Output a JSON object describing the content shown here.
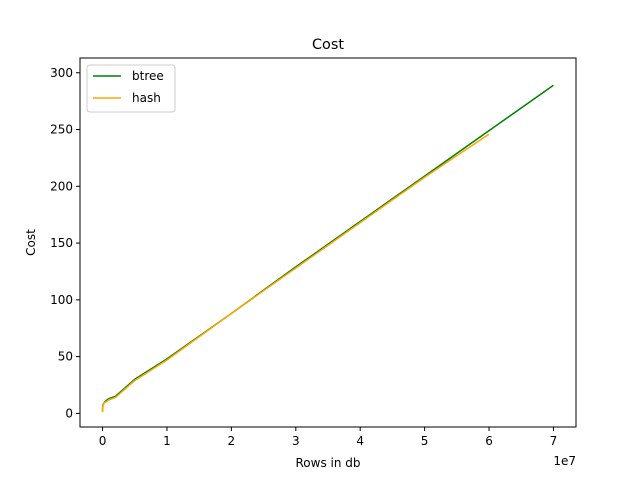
{
  "chart_data": {
    "type": "line",
    "title": "Cost",
    "xlabel": "Rows in db",
    "ylabel": "Cost",
    "x_offset_label": "1e7",
    "xlim": [
      -3500000,
      73500000
    ],
    "ylim": [
      -12,
      313
    ],
    "x_ticks": [
      0,
      10000000,
      20000000,
      30000000,
      40000000,
      50000000,
      60000000,
      70000000
    ],
    "x_tick_labels": [
      "0",
      "1",
      "2",
      "3",
      "4",
      "5",
      "6",
      "7"
    ],
    "y_ticks": [
      0,
      50,
      100,
      150,
      200,
      250,
      300
    ],
    "y_tick_labels": [
      "0",
      "50",
      "100",
      "150",
      "200",
      "250",
      "300"
    ],
    "grid": false,
    "legend_position": "top-left",
    "series": [
      {
        "name": "btree",
        "color": "#008000",
        "x": [
          0,
          10000,
          50000,
          100000,
          200000,
          500000,
          1000000,
          2000000,
          5000000,
          10000000,
          20000000,
          30000000,
          40000000,
          50000000,
          60000000,
          70000000
        ],
        "y": [
          2,
          5,
          7,
          8,
          9,
          11,
          13,
          15,
          30,
          48,
          88,
          129,
          169,
          209,
          249,
          289
        ]
      },
      {
        "name": "hash",
        "color": "#ffa500",
        "x": [
          0,
          10000,
          50000,
          100000,
          200000,
          500000,
          1000000,
          2000000,
          5000000,
          10000000,
          20000000,
          30000000,
          40000000,
          50000000,
          60000000
        ],
        "y": [
          1,
          4,
          6,
          7,
          9,
          10,
          12,
          14,
          29,
          47,
          88,
          128,
          168,
          208,
          246
        ]
      }
    ]
  }
}
